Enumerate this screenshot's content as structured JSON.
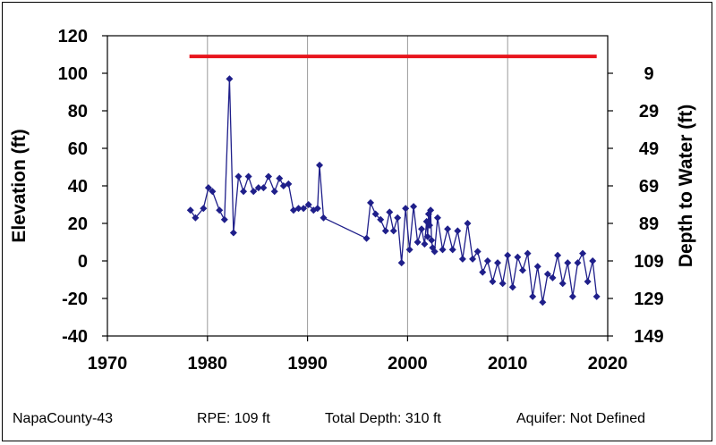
{
  "chart_data": {
    "type": "line",
    "xlabel": "",
    "ylabel": "Elevation (ft)",
    "y2label": "Depth to Water (ft)",
    "xlim": [
      1970,
      2020
    ],
    "ylim": [
      -40,
      120
    ],
    "xticks": [
      "1970",
      "1980",
      "1990",
      "2000",
      "2010",
      "2020"
    ],
    "yticks": [
      "-40",
      "-20",
      "0",
      "20",
      "40",
      "60",
      "80",
      "100",
      "120"
    ],
    "y2ticks": [
      "9",
      "29",
      "49",
      "69",
      "89",
      "109",
      "129",
      "149"
    ],
    "grid": "vertical",
    "rpe_line": {
      "value": 109,
      "x_start": 1978.2,
      "x_end": 2018.9,
      "color": "#e8141c"
    },
    "series": [
      {
        "color": "#1f1f8a",
        "marker": "diamond",
        "x": [
          1978.3,
          1978.8,
          1979.6,
          1980.1,
          1980.5,
          1981.2,
          1981.7,
          1982.2,
          1982.6,
          1983.1,
          1983.6,
          1984.1,
          1984.6,
          1985.1,
          1985.6,
          1986.1,
          1986.7,
          1987.2,
          1987.6,
          1988.1,
          1988.6,
          1989.1,
          1989.6,
          1990.1,
          1990.6,
          1991.0,
          1991.2,
          1991.6,
          1995.9,
          1996.3,
          1996.8,
          1997.3,
          1997.8,
          1998.2,
          1998.6,
          1999.0,
          1999.4,
          1999.8,
          2000.2,
          2000.6,
          2001.0,
          2001.4,
          2001.7,
          2001.9,
          2002.0,
          2002.1,
          2002.2,
          2002.3,
          2002.4,
          2002.5,
          2002.7,
          2003.0,
          2003.5,
          2004.0,
          2004.5,
          2005.0,
          2005.5,
          2006.0,
          2006.5,
          2007.0,
          2007.5,
          2008.0,
          2008.5,
          2009.0,
          2009.5,
          2010.0,
          2010.5,
          2011.0,
          2011.5,
          2012.0,
          2012.5,
          2013.0,
          2013.5,
          2014.0,
          2014.5,
          2015.0,
          2015.5,
          2016.0,
          2016.5,
          2017.0,
          2017.5,
          2018.0,
          2018.5,
          2018.9
        ],
        "y": [
          27,
          23,
          28,
          39,
          37,
          27,
          22,
          97,
          15,
          45,
          37,
          45,
          37,
          39,
          39,
          45,
          37,
          44,
          40,
          41,
          27,
          28,
          28,
          30,
          27,
          28,
          51,
          23,
          12,
          31,
          25,
          22,
          16,
          26,
          16,
          23,
          -1,
          28,
          6,
          29,
          10,
          17,
          9,
          21,
          13,
          25,
          19,
          27,
          11,
          7,
          5,
          23,
          6,
          17,
          6,
          16,
          1,
          20,
          1,
          5,
          -6,
          0,
          -11,
          -1,
          -12,
          3,
          -14,
          2,
          -5,
          4,
          -19,
          -3,
          -22,
          -7,
          -9,
          3,
          -12,
          -1,
          -19,
          -1,
          4,
          -11,
          0,
          -19
        ]
      }
    ]
  },
  "footer": {
    "well": "NapaCounty-43",
    "rpe": "RPE: 109 ft",
    "total_depth": "Total Depth: 310 ft",
    "aquifer": "Aquifer: Not Defined"
  }
}
